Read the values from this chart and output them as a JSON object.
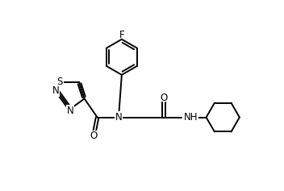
{
  "background_color": "#ffffff",
  "line_color": "#000000",
  "line_width": 1.4,
  "font_size": 8.5,
  "fig_width": 3.52,
  "fig_height": 2.37,
  "xlim": [
    -0.5,
    8.5
  ],
  "ylim": [
    0.0,
    6.5
  ]
}
